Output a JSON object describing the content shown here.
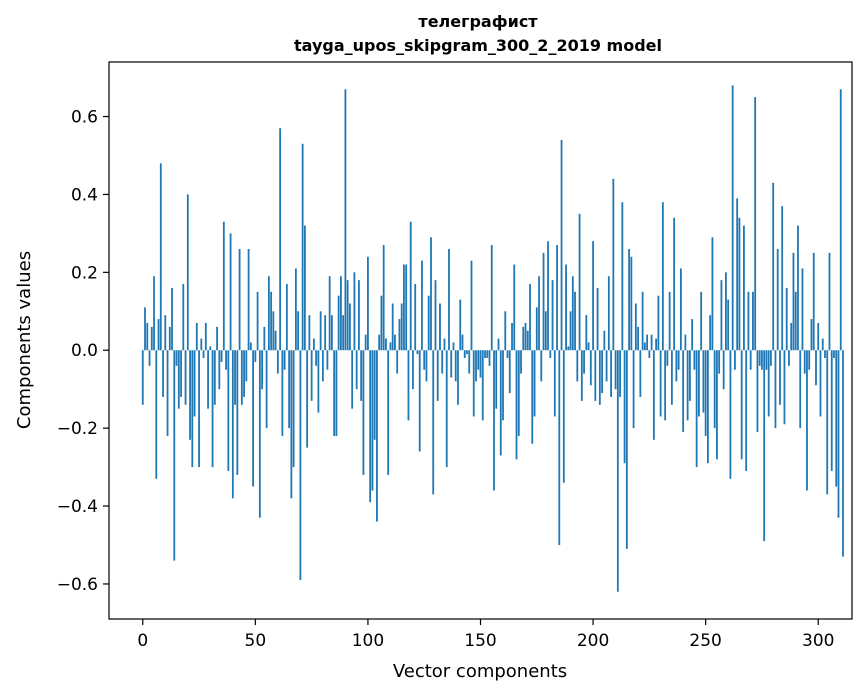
{
  "chart_data": {
    "type": "bar",
    "title": "телеграфист",
    "subtitle": "tayga_upos_skipgram_300_2_2019 model",
    "xlabel": "Vector components",
    "ylabel": "Components values",
    "xlim": [
      -15,
      315
    ],
    "ylim": [
      -0.69,
      0.74
    ],
    "xticks": [
      0,
      50,
      100,
      150,
      200,
      250,
      300
    ],
    "xtick_labels": [
      "0",
      "50",
      "100",
      "150",
      "200",
      "250",
      "300"
    ],
    "yticks": [
      -0.6,
      -0.4,
      -0.2,
      0.0,
      0.2,
      0.4,
      0.6
    ],
    "ytick_labels": [
      "−0.6",
      "−0.4",
      "−0.2",
      "0.0",
      "0.2",
      "0.4",
      "0.6"
    ],
    "grid": false,
    "bar_color": "#1f77b4",
    "series": [
      {
        "values": [
          -0.14,
          0.11,
          0.07,
          -0.04,
          0.06,
          0.19,
          -0.33,
          0.08,
          0.48,
          -0.12,
          0.09,
          -0.22,
          0.06,
          0.16,
          -0.54,
          -0.04,
          -0.15,
          -0.12,
          0.17,
          -0.14,
          0.4,
          -0.23,
          -0.3,
          -0.17,
          0.07,
          -0.3,
          0.03,
          -0.02,
          0.07,
          -0.15,
          0.01,
          -0.3,
          -0.14,
          0.06,
          -0.1,
          -0.03,
          0.33,
          -0.05,
          -0.31,
          0.3,
          -0.38,
          -0.14,
          -0.32,
          0.26,
          -0.14,
          -0.12,
          -0.08,
          0.26,
          0.02,
          -0.35,
          -0.03,
          0.15,
          -0.43,
          -0.1,
          0.06,
          -0.2,
          0.19,
          0.15,
          0.1,
          0.05,
          -0.06,
          0.57,
          -0.22,
          -0.05,
          0.17,
          -0.2,
          -0.38,
          -0.3,
          0.21,
          0.1,
          -0.59,
          0.53,
          0.32,
          -0.25,
          0.09,
          -0.13,
          0.03,
          -0.04,
          -0.16,
          0.1,
          -0.08,
          0.09,
          -0.05,
          0.19,
          0.09,
          -0.22,
          -0.22,
          0.14,
          0.19,
          0.09,
          0.67,
          0.18,
          0.12,
          -0.15,
          0.2,
          -0.1,
          0.18,
          -0.13,
          -0.32,
          0.04,
          0.24,
          -0.39,
          -0.36,
          -0.23,
          -0.44,
          0.04,
          0.14,
          0.27,
          0.03,
          -0.32,
          0.02,
          0.12,
          0.04,
          -0.06,
          0.08,
          0.12,
          0.22,
          0.22,
          -0.18,
          0.33,
          -0.1,
          0.17,
          -0.01,
          -0.26,
          0.23,
          -0.05,
          -0.08,
          0.14,
          0.29,
          -0.37,
          0.18,
          -0.13,
          0.12,
          -0.06,
          0.03,
          -0.3,
          0.26,
          -0.07,
          0.02,
          -0.08,
          -0.14,
          0.13,
          0.04,
          -0.02,
          -0.01,
          -0.06,
          0.23,
          -0.17,
          -0.08,
          -0.05,
          -0.07,
          -0.18,
          -0.02,
          -0.02,
          -0.04,
          0.27,
          -0.36,
          -0.15,
          0.03,
          -0.27,
          -0.18,
          0.1,
          -0.02,
          -0.11,
          0.07,
          0.22,
          -0.28,
          -0.22,
          -0.06,
          0.06,
          0.07,
          0.05,
          0.17,
          -0.24,
          -0.17,
          0.11,
          0.19,
          -0.08,
          0.25,
          0.1,
          0.28,
          -0.02,
          0.18,
          -0.17,
          0.27,
          -0.5,
          0.54,
          -0.34,
          0.22,
          0.01,
          0.1,
          0.19,
          0.15,
          -0.08,
          0.35,
          -0.13,
          -0.06,
          0.09,
          0.02,
          -0.09,
          0.28,
          -0.13,
          0.16,
          -0.14,
          -0.11,
          0.05,
          -0.08,
          0.19,
          -0.12,
          0.44,
          -0.1,
          -0.62,
          -0.12,
          0.38,
          -0.29,
          -0.51,
          0.26,
          0.24,
          -0.2,
          0.12,
          0.06,
          -0.12,
          0.15,
          0.02,
          0.04,
          -0.02,
          0.04,
          -0.23,
          0.03,
          0.14,
          -0.17,
          0.38,
          -0.18,
          -0.04,
          0.15,
          -0.14,
          0.34,
          -0.08,
          -0.05,
          0.21,
          -0.21,
          0.04,
          -0.18,
          -0.13,
          0.08,
          -0.05,
          -0.3,
          -0.17,
          0.15,
          -0.16,
          -0.22,
          -0.29,
          0.09,
          0.29,
          -0.2,
          -0.28,
          -0.06,
          0.18,
          -0.1,
          0.2,
          0.13,
          -0.33,
          0.68,
          -0.05,
          0.39,
          0.34,
          -0.28,
          0.32,
          -0.31,
          0.15,
          -0.05,
          0.15,
          0.65,
          -0.21,
          -0.04,
          -0.05,
          -0.49,
          -0.05,
          -0.17,
          -0.04,
          0.43,
          -0.2,
          0.26,
          -0.14,
          0.37,
          -0.19,
          0.16,
          -0.04,
          0.07,
          0.25,
          0.15,
          0.32,
          -0.2,
          0.21,
          -0.06,
          -0.36,
          -0.05,
          0.08,
          0.25,
          -0.09,
          0.07,
          -0.17,
          0.03,
          -0.02,
          -0.37,
          0.25,
          -0.31,
          -0.02,
          -0.35,
          -0.43,
          0.67,
          -0.53
        ]
      }
    ]
  }
}
